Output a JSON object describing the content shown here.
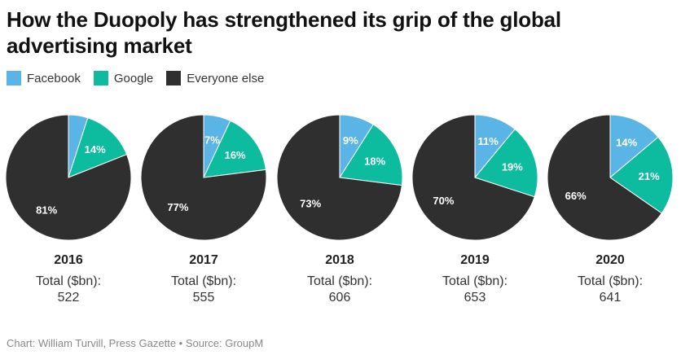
{
  "chart_data": {
    "type": "pie",
    "title": "How the Duopoly has strengthened its grip of the global advertising market",
    "legend": {
      "placement": "top-left",
      "entries": [
        {
          "name": "Facebook",
          "color": "#5ab4e5"
        },
        {
          "name": "Google",
          "color": "#0dbb9e"
        },
        {
          "name": "Everyone else",
          "color": "#2f2f2f"
        }
      ]
    },
    "total_label": "Total ($bn):",
    "pies": [
      {
        "year": "2016",
        "total": "522",
        "slices": [
          {
            "name": "Facebook",
            "value": 5,
            "label": ""
          },
          {
            "name": "Google",
            "value": 14,
            "label": "14%"
          },
          {
            "name": "Everyone else",
            "value": 81,
            "label": "81%"
          }
        ]
      },
      {
        "year": "2017",
        "total": "555",
        "slices": [
          {
            "name": "Facebook",
            "value": 7,
            "label": "7%"
          },
          {
            "name": "Google",
            "value": 16,
            "label": "16%"
          },
          {
            "name": "Everyone else",
            "value": 77,
            "label": "77%"
          }
        ]
      },
      {
        "year": "2018",
        "total": "606",
        "slices": [
          {
            "name": "Facebook",
            "value": 9,
            "label": "9%"
          },
          {
            "name": "Google",
            "value": 18,
            "label": "18%"
          },
          {
            "name": "Everyone else",
            "value": 73,
            "label": "73%"
          }
        ]
      },
      {
        "year": "2019",
        "total": "653",
        "slices": [
          {
            "name": "Facebook",
            "value": 11,
            "label": "11%"
          },
          {
            "name": "Google",
            "value": 19,
            "label": "19%"
          },
          {
            "name": "Everyone else",
            "value": 70,
            "label": "70%"
          }
        ]
      },
      {
        "year": "2020",
        "total": "641",
        "slices": [
          {
            "name": "Facebook",
            "value": 14,
            "label": "14%"
          },
          {
            "name": "Google",
            "value": 21,
            "label": "21%"
          },
          {
            "name": "Everyone else",
            "value": 66,
            "label": "66%"
          }
        ]
      }
    ]
  },
  "footer": "Chart: William Turvill, Press Gazette • Source: GroupM"
}
